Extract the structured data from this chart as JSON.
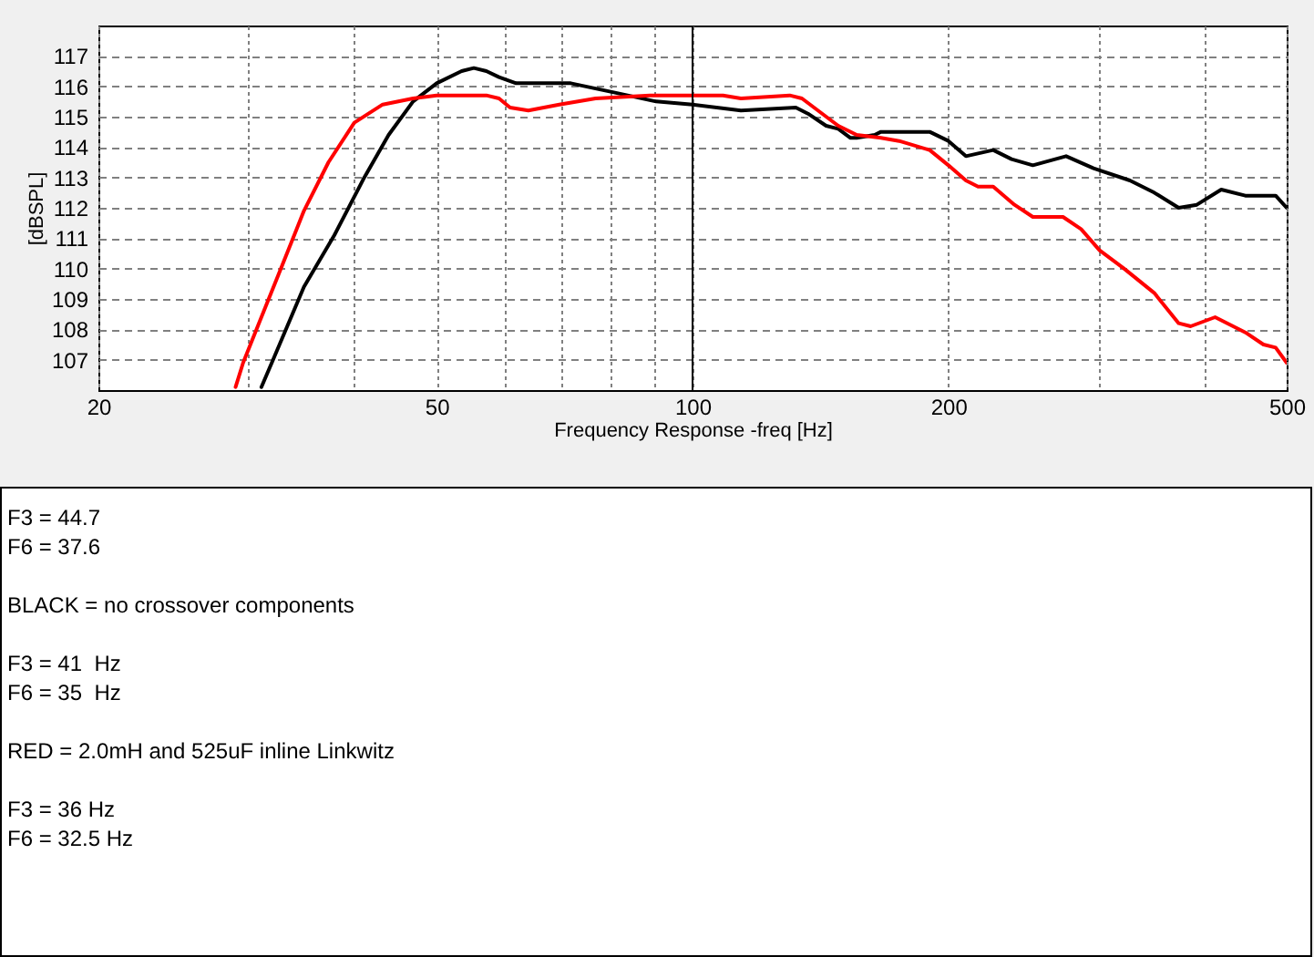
{
  "chart_data": {
    "type": "line",
    "xlabel": "Frequency Response -freq [Hz]",
    "ylabel": "[dBSPL]",
    "log": "x",
    "grid": true,
    "xlim": [
      20,
      500
    ],
    "xticks": [
      20,
      {
        "value": 30,
        "label": null
      },
      {
        "value": 40,
        "label": null
      },
      50,
      {
        "value": 60,
        "label": null
      },
      {
        "value": 70,
        "label": null
      },
      {
        "value": 80,
        "label": null
      },
      {
        "value": 90,
        "label": null
      },
      100,
      200,
      {
        "value": 300,
        "label": null
      },
      {
        "value": 400,
        "label": null
      },
      500
    ],
    "ylim": [
      106,
      118
    ],
    "yticks": [
      107,
      108,
      109,
      110,
      111,
      112,
      113,
      114,
      115,
      116,
      117
    ],
    "ref_lines": [
      {
        "axis": "x",
        "value": 100,
        "color": "#000000"
      }
    ],
    "series": [
      {
        "color": "#000000",
        "x": [
          31.1,
          32.1,
          34.9,
          37.9,
          41.1,
          43.9,
          46.9,
          50,
          53.5,
          55.3,
          57.2,
          59.2,
          62,
          71.9,
          80.8,
          90.6,
          100,
          114,
          132.3,
          136.7,
          143.6,
          148.4,
          153.4,
          156,
          163.8,
          166.6,
          190.1,
          200,
          209.7,
          225.8,
          237.3,
          251.4,
          275.1,
          296.3,
          327,
          349.2,
          373.2,
          392,
          418.8,
          447,
          485.3,
          500
        ],
        "values": [
          106.1,
          107.0,
          109.4,
          111.1,
          113.0,
          114.4,
          115.5,
          116.1,
          116.5,
          116.6,
          116.5,
          116.3,
          116.1,
          116.1,
          115.8,
          115.5,
          115.4,
          115.2,
          115.3,
          115.1,
          114.7,
          114.6,
          114.3,
          114.3,
          114.4,
          114.5,
          114.5,
          114.2,
          113.7,
          113.9,
          113.6,
          113.4,
          113.7,
          113.3,
          112.9,
          112.5,
          112.0,
          112.1,
          112.6,
          112.4,
          112.4,
          112.0
        ]
      },
      {
        "color": "#ff0000",
        "x": [
          29.0,
          29.6,
          31.1,
          32.9,
          34.9,
          37.3,
          40,
          43.2,
          46.9,
          50,
          57.2,
          59.2,
          61,
          64.1,
          69.7,
          76.9,
          89.1,
          108.6,
          114,
          130.1,
          134.5,
          143.6,
          148.4,
          156,
          166.6,
          175,
          190.1,
          200,
          209.7,
          216.7,
          225.8,
          239.2,
          251.4,
          272.8,
          286.5,
          301.2,
          321.8,
          349.2,
          373.2,
          385.5,
          411.9,
          447,
          469.5,
          485.3,
          500
        ],
        "values": [
          106.1,
          106.9,
          108.4,
          110.1,
          111.9,
          113.5,
          114.8,
          115.4,
          115.6,
          115.7,
          115.7,
          115.6,
          115.3,
          115.2,
          115.4,
          115.6,
          115.7,
          115.7,
          115.6,
          115.7,
          115.6,
          115.0,
          114.7,
          114.4,
          114.3,
          114.2,
          113.9,
          113.4,
          112.9,
          112.7,
          112.7,
          112.1,
          111.7,
          111.7,
          111.3,
          110.6,
          110.0,
          109.2,
          108.2,
          108.1,
          108.4,
          107.9,
          107.5,
          107.4,
          106.9
        ]
      }
    ],
    "annotations": [
      "F3 = 44.7\nF6 = 37.6",
      "BLACK = no crossover components",
      "F3 = 41  Hz\nF6 = 35  Hz",
      "RED = 2.0mH and 525uF inline Linkwitz",
      "F3 = 36 Hz\nF6 = 32.5 Hz"
    ]
  }
}
